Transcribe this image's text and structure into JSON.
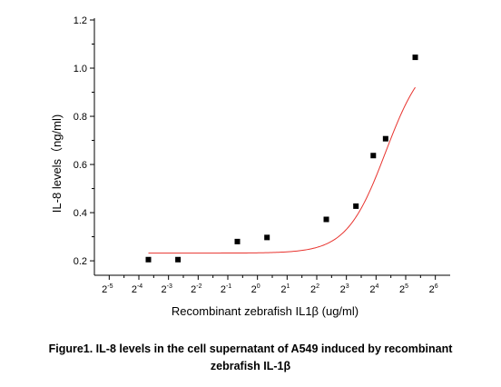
{
  "chart_data": {
    "type": "scatter",
    "title": "",
    "xlabel": "Recombinant zebrafish IL1β (ug/ml)",
    "ylabel": "IL-8 levels（ng/ml)",
    "x_scale": "log2",
    "xlim": [
      -5.5,
      6.5
    ],
    "ylim": [
      0.14,
      1.2
    ],
    "x_ticks": [
      {
        "base": "2",
        "exp": "-5",
        "value": 0.03125
      },
      {
        "base": "2",
        "exp": "-4",
        "value": 0.0625
      },
      {
        "base": "2",
        "exp": "-3",
        "value": 0.125
      },
      {
        "base": "2",
        "exp": "-2",
        "value": 0.25
      },
      {
        "base": "2",
        "exp": "-1",
        "value": 0.5
      },
      {
        "base": "2",
        "exp": "0",
        "value": 1
      },
      {
        "base": "2",
        "exp": "1",
        "value": 2
      },
      {
        "base": "2",
        "exp": "2",
        "value": 4
      },
      {
        "base": "2",
        "exp": "3",
        "value": 8
      },
      {
        "base": "2",
        "exp": "4",
        "value": 16
      },
      {
        "base": "2",
        "exp": "5",
        "value": 32
      },
      {
        "base": "2",
        "exp": "6",
        "value": 64
      }
    ],
    "y_ticks": [
      "0.2",
      "0.4",
      "0.6",
      "0.8",
      "1.0",
      "1.2"
    ],
    "series": [
      {
        "marker": "square",
        "color": "#000000",
        "points": [
          {
            "x": 0.0781,
            "y": 0.205
          },
          {
            "x": 0.156,
            "y": 0.205
          },
          {
            "x": 0.625,
            "y": 0.28
          },
          {
            "x": 1.25,
            "y": 0.297
          },
          {
            "x": 5.0,
            "y": 0.372
          },
          {
            "x": 10.0,
            "y": 0.427
          },
          {
            "x": 15.0,
            "y": 0.637
          },
          {
            "x": 20.0,
            "y": 0.707
          },
          {
            "x": 40.0,
            "y": 1.045
          }
        ]
      }
    ],
    "fit_curve": {
      "type": "logistic",
      "color": "#e8332e",
      "bottom": 0.232,
      "top": 1.07,
      "ec50": 20,
      "hill": 2.2,
      "x_range": [
        0.0781,
        40.0
      ]
    },
    "grid": false,
    "legend": "none"
  },
  "caption": {
    "line1": "Figure1. IL-8 levels in the cell supernatant of A549 induced by recombinant",
    "line2": "zebrafish IL-1β"
  }
}
